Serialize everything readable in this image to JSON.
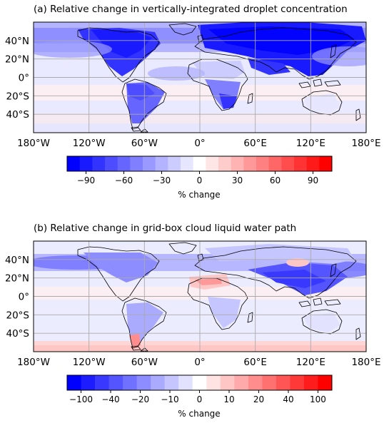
{
  "chart_data": [
    {
      "type": "heatmap",
      "title": "(a) Relative change in vertically-integrated droplet concentration",
      "x_ticks": [
        "180°W",
        "120°W",
        "60°W",
        "0°",
        "60°E",
        "120°E",
        "180°E"
      ],
      "y_ticks": [
        "40°N",
        "20°N",
        "0°",
        "20°S",
        "40°S"
      ],
      "xlim": [
        -180,
        180
      ],
      "ylim": [
        -60,
        60
      ],
      "grid": true,
      "colorbar": {
        "label": "% change",
        "ticks": [
          "−90",
          "−60",
          "−30",
          "0",
          "30",
          "60",
          "90"
        ],
        "colors": [
          "#0000ff",
          "#1a1aff",
          "#3333ff",
          "#4d4dff",
          "#6666ff",
          "#8080ff",
          "#9999ff",
          "#b3b3ff",
          "#ccccff",
          "#e6e6ff",
          "#ffffff",
          "#ffe6e6",
          "#ffcccc",
          "#ffb3b3",
          "#ff9999",
          "#ff8080",
          "#ff6666",
          "#ff4d4d",
          "#ff3333",
          "#ff1a1a",
          "#ff0000"
        ]
      }
    },
    {
      "type": "heatmap",
      "title": "(b) Relative change in grid-box cloud liquid water path",
      "x_ticks": [
        "180°W",
        "120°W",
        "60°W",
        "0°",
        "60°E",
        "120°E",
        "180°E"
      ],
      "y_ticks": [
        "40°N",
        "20°N",
        "0°",
        "20°S",
        "40°S"
      ],
      "xlim": [
        -180,
        180
      ],
      "ylim": [
        -60,
        60
      ],
      "grid": true,
      "colorbar": {
        "label": "% change",
        "ticks": [
          "−100",
          "−40",
          "−20",
          "−10",
          "0",
          "10",
          "20",
          "40",
          "100"
        ],
        "colors": [
          "#0000ff",
          "#1c1cff",
          "#3838ff",
          "#5555ff",
          "#7171ff",
          "#8d8dff",
          "#aaaaff",
          "#c6c6ff",
          "#e2e2ff",
          "#ffffff",
          "#ffe2e2",
          "#ffc6c6",
          "#ffaaaa",
          "#ff8d8d",
          "#ff7171",
          "#ff5555",
          "#ff3838",
          "#ff1c1c",
          "#ff0000"
        ]
      }
    }
  ]
}
